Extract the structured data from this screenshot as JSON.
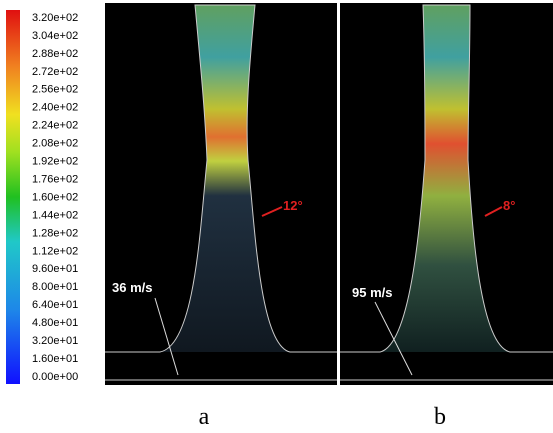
{
  "colorbar": {
    "labels": [
      "3.20e+02",
      "3.04e+02",
      "2.88e+02",
      "2.72e+02",
      "2.56e+02",
      "2.40e+02",
      "2.24e+02",
      "2.08e+02",
      "1.92e+02",
      "1.76e+02",
      "1.60e+02",
      "1.44e+02",
      "1.28e+02",
      "1.12e+02",
      "9.60e+01",
      "8.00e+01",
      "6.40e+01",
      "4.80e+01",
      "3.20e+01",
      "1.60e+01",
      "0.00e+00"
    ]
  },
  "panels": [
    {
      "angle": "12°",
      "speed": "36 m/s",
      "caption": "a"
    },
    {
      "angle": "8°",
      "speed": "95 m/s",
      "caption": "b"
    }
  ]
}
